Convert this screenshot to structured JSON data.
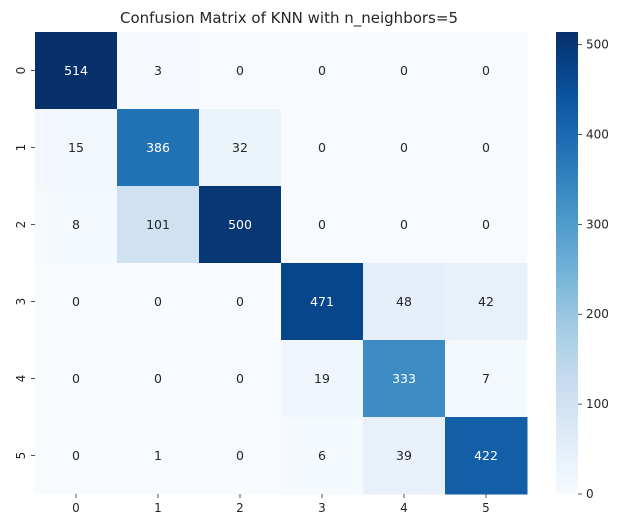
{
  "chart_data": {
    "type": "heatmap",
    "title": "Confusion Matrix of KNN with n_neighbors=5",
    "xlabel": "",
    "ylabel": "",
    "x_categories": [
      "0",
      "1",
      "2",
      "3",
      "4",
      "5"
    ],
    "y_categories": [
      "0",
      "1",
      "2",
      "3",
      "4",
      "5"
    ],
    "values": [
      [
        514,
        3,
        0,
        0,
        0,
        0
      ],
      [
        15,
        386,
        32,
        0,
        0,
        0
      ],
      [
        8,
        101,
        500,
        0,
        0,
        0
      ],
      [
        0,
        0,
        0,
        471,
        48,
        42
      ],
      [
        0,
        0,
        0,
        19,
        333,
        7
      ],
      [
        0,
        1,
        0,
        6,
        39,
        422
      ]
    ],
    "colormap": "Blues",
    "colorbar": {
      "range": [
        0,
        514
      ],
      "ticks": [
        0,
        100,
        200,
        300,
        400,
        500
      ],
      "tick_labels": [
        "0",
        "100",
        "200",
        "300",
        "400",
        "500"
      ]
    },
    "grid": false
  }
}
